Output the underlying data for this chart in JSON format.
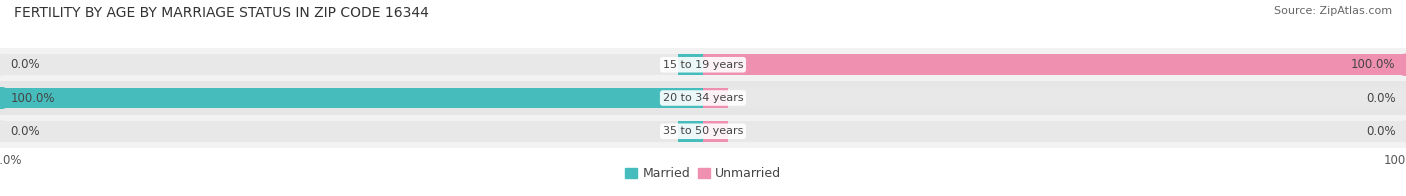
{
  "title": "FERTILITY BY AGE BY MARRIAGE STATUS IN ZIP CODE 16344",
  "source": "Source: ZipAtlas.com",
  "categories": [
    "15 to 19 years",
    "20 to 34 years",
    "35 to 50 years"
  ],
  "married": [
    0.0,
    100.0,
    0.0
  ],
  "unmarried": [
    100.0,
    0.0,
    0.0
  ],
  "married_color": "#47bcbc",
  "unmarried_color": "#f090b0",
  "bar_bg_left_color": "#e8e8e8",
  "bar_bg_right_color": "#e8e8e8",
  "row_bg_colors": [
    "#f2f2f2",
    "#e6e6e6",
    "#f2f2f2"
  ],
  "bar_height": 0.62,
  "xlim": 100,
  "title_fontsize": 10,
  "source_fontsize": 8,
  "label_fontsize": 8.5,
  "category_fontsize": 8,
  "legend_fontsize": 9,
  "axis_label_fontsize": 8.5,
  "fig_bg_color": "#ffffff"
}
